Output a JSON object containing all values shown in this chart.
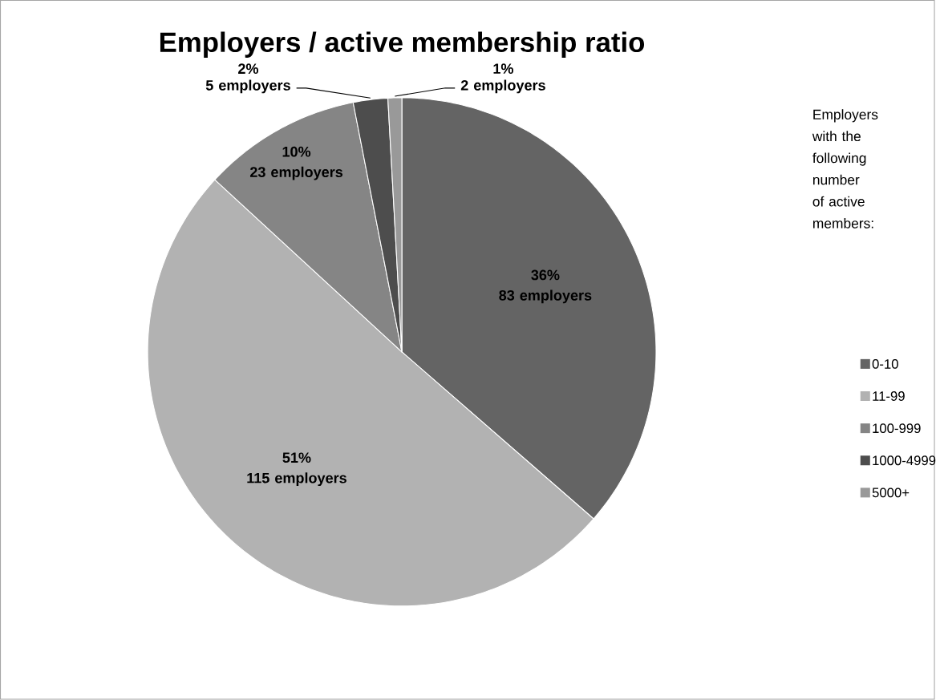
{
  "chart_data": {
    "type": "pie",
    "title": "Employers / active membership ratio",
    "legend_title": "Employers with the following number of active members:",
    "categories": [
      "0-10",
      "11-99",
      "100-999",
      "1000-4999",
      "5000+"
    ],
    "values": [
      83,
      115,
      23,
      5,
      2
    ],
    "colors": [
      "#646464",
      "#b2b2b2",
      "#858585",
      "#4d4d4d",
      "#999999"
    ],
    "value_labels": [
      "36%\n83 employers",
      "51%\n115 employers",
      "10%\n23 employers",
      "2%\n5 employers",
      "1%\n2 employers"
    ],
    "legend": "right"
  }
}
